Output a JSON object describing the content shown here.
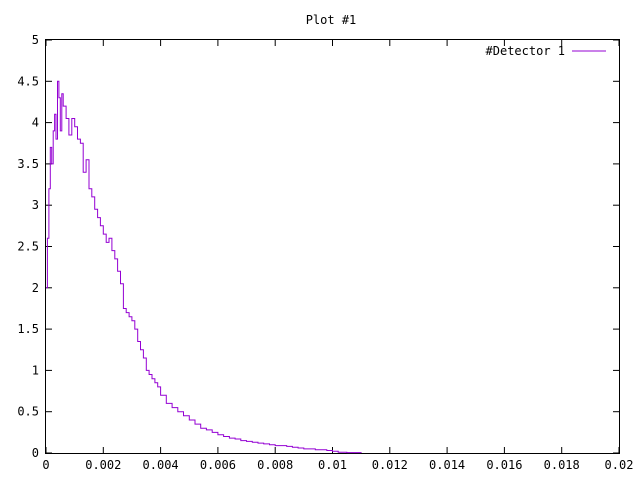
{
  "chart_data": {
    "type": "line",
    "title": "Plot #1",
    "xlabel": "",
    "ylabel": "",
    "xlim": [
      0,
      0.02
    ],
    "ylim": [
      0,
      5
    ],
    "x_ticks": [
      "0",
      "0.002",
      "0.004",
      "0.006",
      "0.008",
      "0.01",
      "0.012",
      "0.014",
      "0.016",
      "0.018",
      "0.02"
    ],
    "y_ticks": [
      "0",
      "0.5",
      "1",
      "1.5",
      "2",
      "2.5",
      "3",
      "3.5",
      "4",
      "4.5",
      "5"
    ],
    "grid": false,
    "legend_position": "top-right",
    "series": [
      {
        "name": "#Detector 1",
        "color": "#9400d3",
        "step": true,
        "x": [
          0,
          5e-05,
          0.0001,
          0.00015,
          0.0002,
          0.00025,
          0.0003,
          0.00035,
          0.0004,
          0.00045,
          0.0005,
          0.00055,
          0.0006,
          0.0007,
          0.0008,
          0.0009,
          0.001,
          0.0011,
          0.0012,
          0.0013,
          0.0014,
          0.0015,
          0.0016,
          0.0017,
          0.0018,
          0.0019,
          0.002,
          0.0021,
          0.0022,
          0.0023,
          0.0024,
          0.0025,
          0.0026,
          0.0027,
          0.0028,
          0.0029,
          0.003,
          0.0031,
          0.0032,
          0.0033,
          0.0034,
          0.0035,
          0.0036,
          0.0037,
          0.0038,
          0.0039,
          0.004,
          0.0042,
          0.0044,
          0.0046,
          0.0048,
          0.005,
          0.0052,
          0.0054,
          0.0056,
          0.0058,
          0.006,
          0.0062,
          0.0064,
          0.0066,
          0.0068,
          0.007,
          0.0072,
          0.0074,
          0.0076,
          0.0078,
          0.008,
          0.0082,
          0.0084,
          0.0086,
          0.0088,
          0.009,
          0.0092,
          0.0094,
          0.0096,
          0.0098,
          0.01,
          0.0102,
          0.0105,
          0.011
        ],
        "y": [
          2.0,
          2.6,
          3.2,
          3.7,
          3.5,
          3.9,
          4.1,
          3.8,
          4.5,
          4.3,
          3.9,
          4.35,
          4.2,
          4.05,
          3.85,
          4.05,
          3.95,
          3.8,
          3.75,
          3.4,
          3.55,
          3.2,
          3.1,
          2.95,
          2.85,
          2.75,
          2.65,
          2.55,
          2.6,
          2.45,
          2.35,
          2.2,
          2.05,
          1.75,
          1.7,
          1.65,
          1.6,
          1.5,
          1.35,
          1.25,
          1.15,
          1.0,
          0.95,
          0.9,
          0.85,
          0.8,
          0.7,
          0.6,
          0.55,
          0.5,
          0.45,
          0.4,
          0.35,
          0.3,
          0.28,
          0.25,
          0.22,
          0.2,
          0.18,
          0.17,
          0.15,
          0.14,
          0.13,
          0.12,
          0.11,
          0.1,
          0.09,
          0.09,
          0.08,
          0.07,
          0.06,
          0.05,
          0.05,
          0.04,
          0.04,
          0.03,
          0.02,
          0.01,
          0.005,
          0.0
        ]
      }
    ]
  }
}
